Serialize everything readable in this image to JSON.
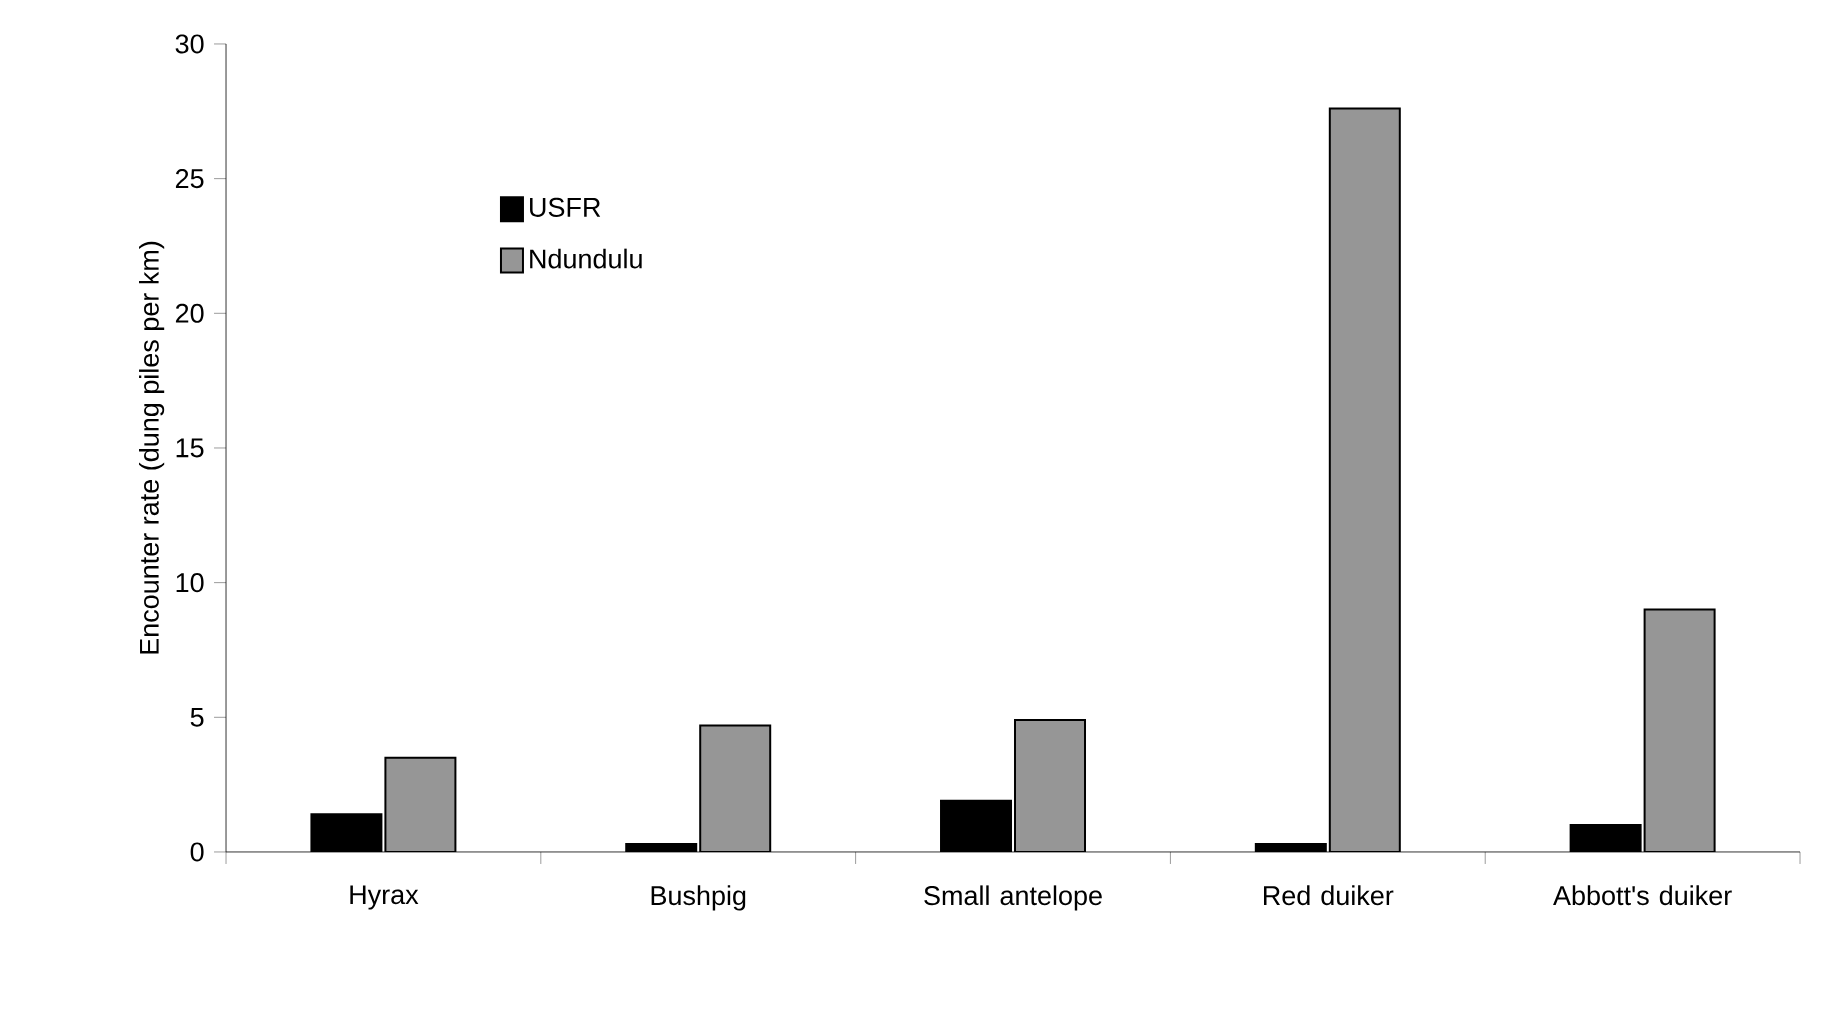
{
  "chart_data": {
    "type": "bar",
    "ylabel": "Encounter rate (dung piles per km)",
    "categories": [
      "Hyrax",
      "Bushpig",
      "Small antelope",
      "Red duiker",
      "Abbott's duiker"
    ],
    "series": [
      {
        "name": "USFR",
        "color": "#000000",
        "values": [
          1.4,
          0.3,
          1.9,
          0.3,
          1.0
        ]
      },
      {
        "name": "Ndundulu",
        "color": "#969696",
        "values": [
          3.5,
          4.7,
          4.9,
          27.6,
          9.0
        ]
      }
    ],
    "ylim": [
      0,
      30
    ],
    "yticks": [
      0,
      5,
      10,
      15,
      20,
      25,
      30
    ],
    "legend": "top left",
    "grid": false
  }
}
